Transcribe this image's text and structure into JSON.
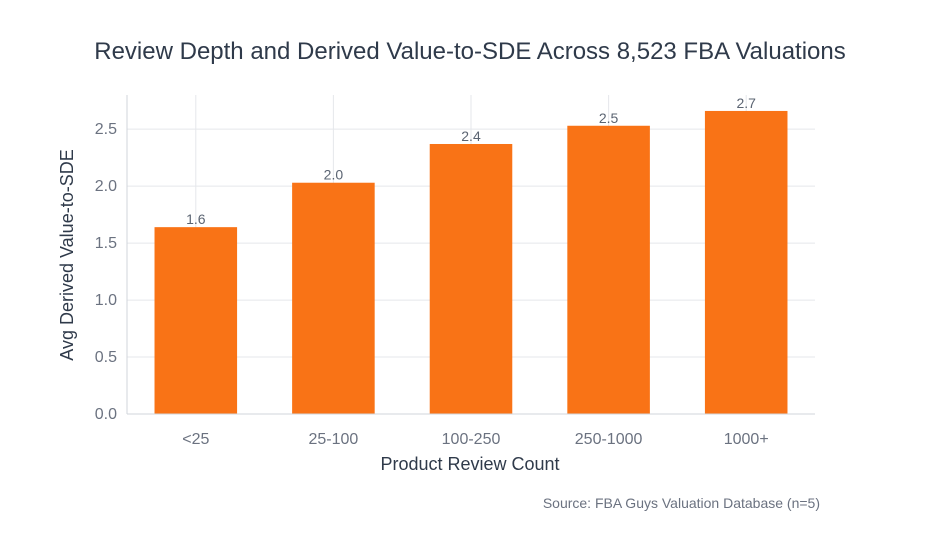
{
  "chart_data": {
    "type": "bar",
    "title": "Review Depth and Derived Value-to-SDE Across 8,523 FBA Valuations",
    "xlabel": "Product Review Count",
    "ylabel": "Avg Derived Value-to-SDE",
    "categories": [
      "<25",
      "25-100",
      "100-250",
      "250-1000",
      "1000+"
    ],
    "values": [
      1.64,
      2.03,
      2.37,
      2.53,
      2.66
    ],
    "data_labels": [
      "1.6",
      "2.0",
      "2.4",
      "2.5",
      "2.7"
    ],
    "ylim": [
      0,
      2.8
    ],
    "yticks": [
      "0.0",
      "0.5",
      "1.0",
      "1.5",
      "2.0",
      "2.5"
    ],
    "grid": true,
    "bar_color": "#f97316",
    "annotation": "Source: FBA Guys Valuation Database (n=5)"
  }
}
